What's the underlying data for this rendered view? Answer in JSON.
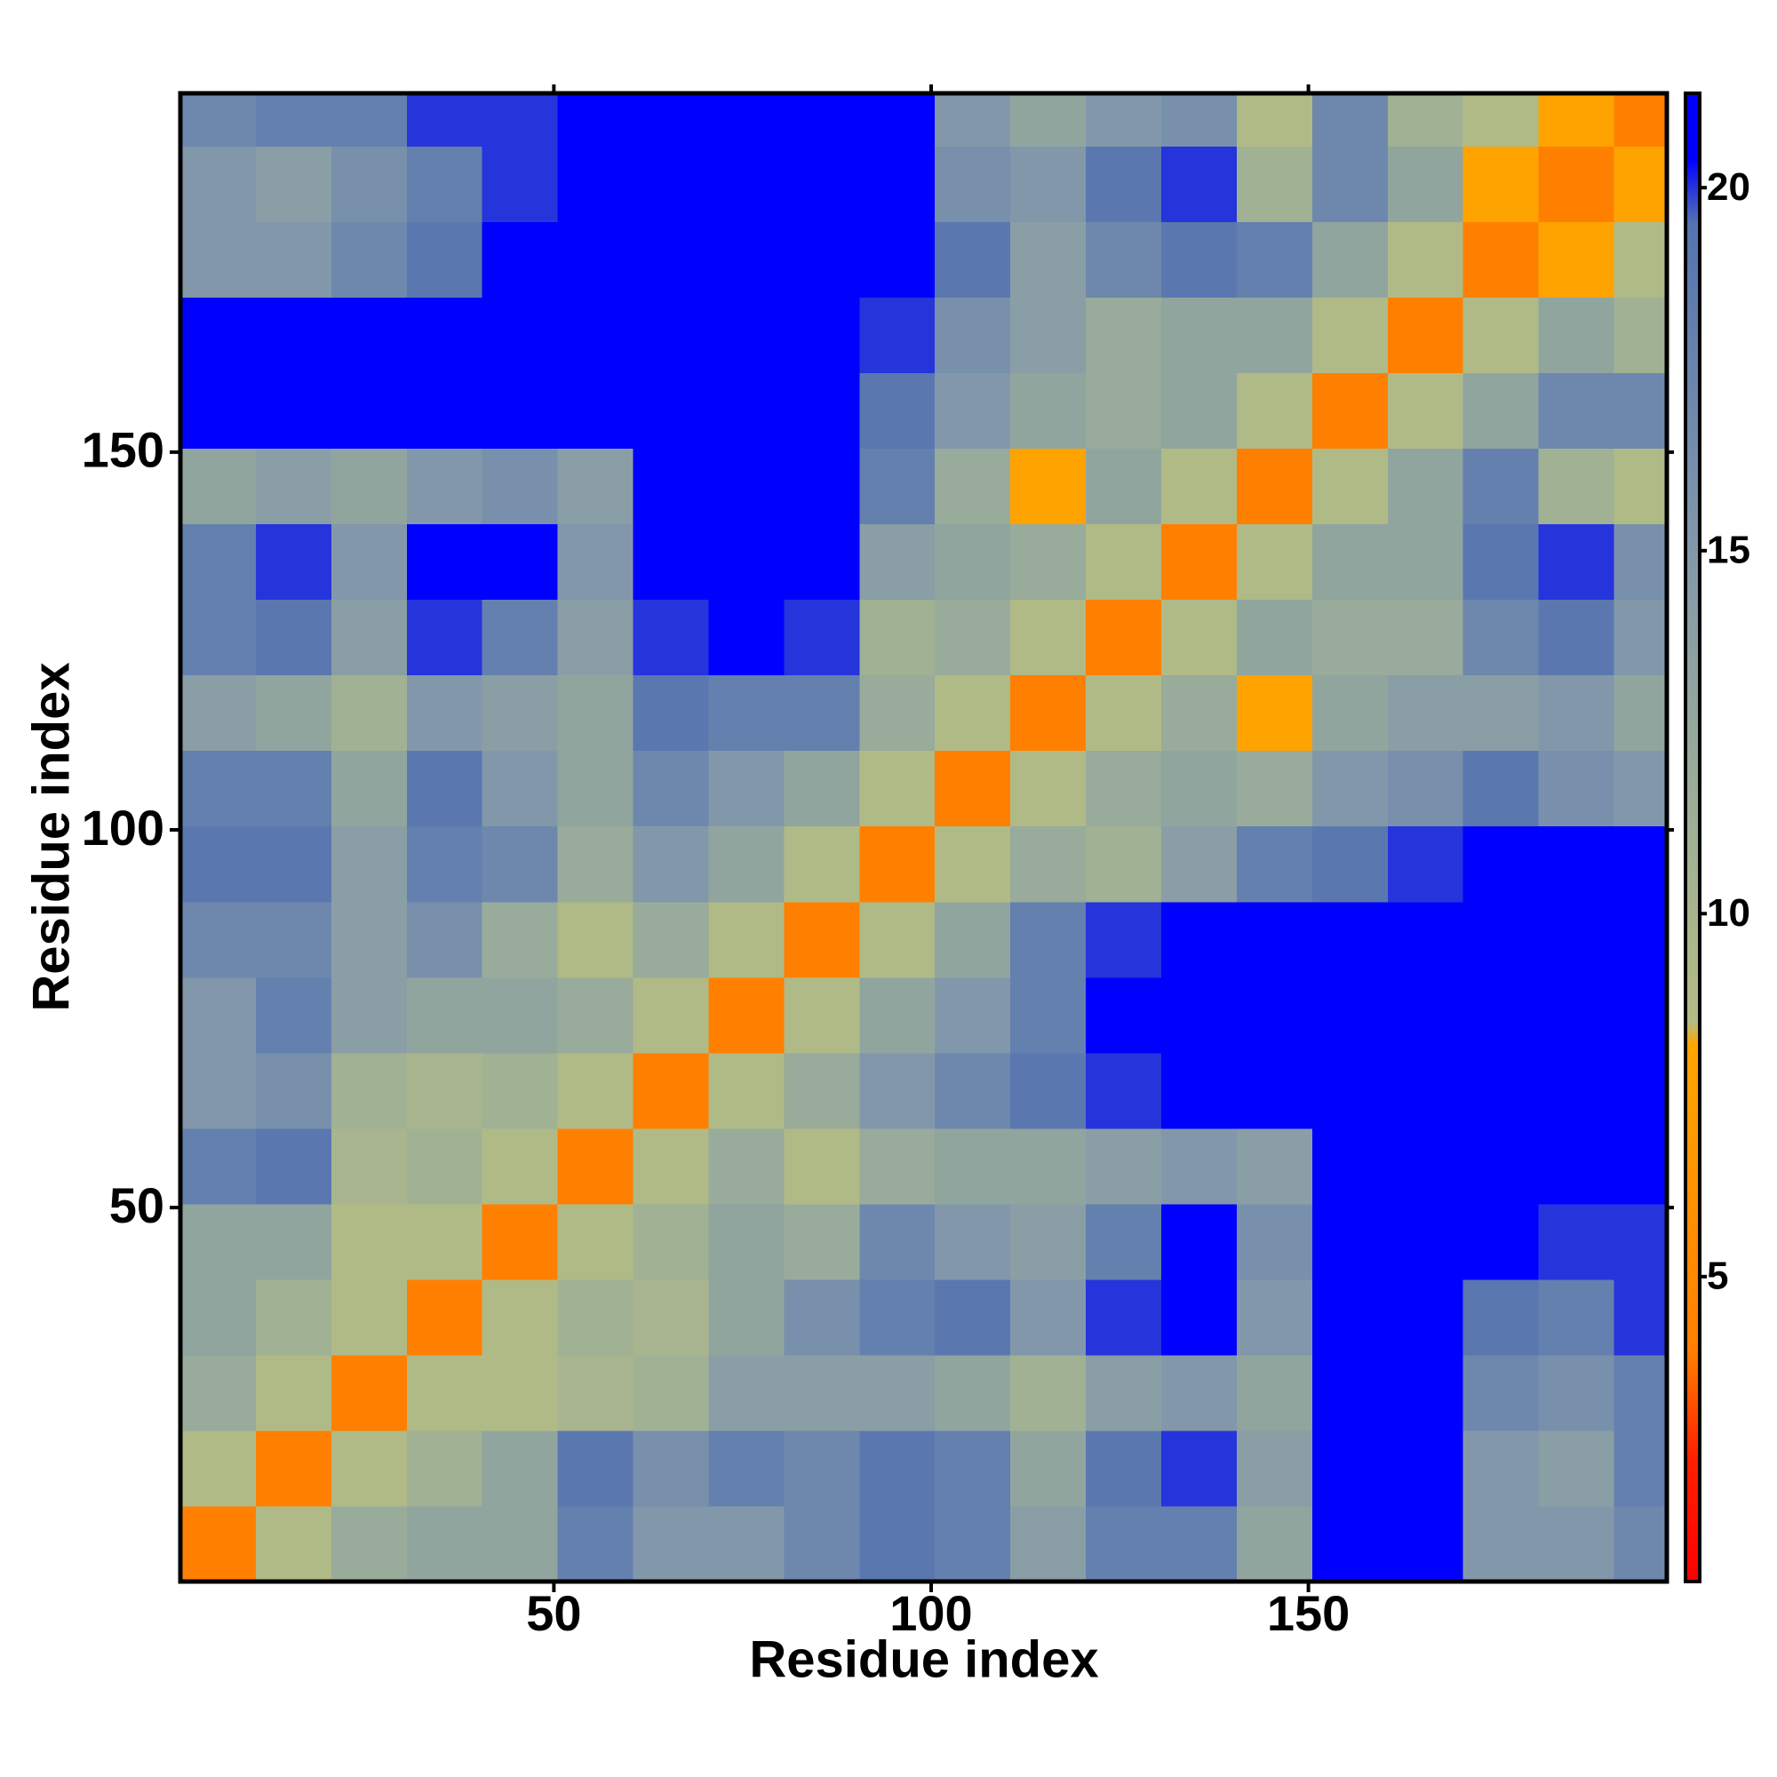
{
  "chart_data": {
    "type": "heatmap",
    "xlabel": "Residue index",
    "ylabel": "Residue index",
    "xedges": [
      0.5,
      10.5,
      20.5,
      30.5,
      40.5,
      50.5,
      60.5,
      70.5,
      80.5,
      90.5,
      100.5,
      110.5,
      120.5,
      130.5,
      140.5,
      150.5,
      160.5,
      170.5,
      180.5,
      190.5,
      197.5
    ],
    "yedges": [
      0.5,
      10.5,
      20.5,
      30.5,
      40.5,
      50.5,
      60.5,
      70.5,
      80.5,
      90.5,
      100.5,
      110.5,
      120.5,
      130.5,
      140.5,
      150.5,
      160.5,
      170.5,
      180.5,
      190.5,
      197.5
    ],
    "z": [
      [
        4,
        9,
        12,
        13,
        13,
        18,
        15,
        15,
        17,
        19,
        18,
        14,
        18,
        18,
        13,
        21,
        21,
        15,
        15,
        17
      ],
      [
        9,
        4,
        9,
        11,
        13,
        19,
        16,
        18,
        17,
        19,
        18,
        13,
        19,
        20,
        14,
        21,
        21,
        15,
        14,
        18
      ],
      [
        12,
        9,
        4,
        9,
        9,
        10,
        11,
        14,
        14,
        14,
        13,
        11,
        14,
        15,
        13,
        21,
        21,
        17,
        16,
        18
      ],
      [
        13,
        11,
        9,
        4,
        9,
        11,
        10,
        13,
        16,
        18,
        19,
        15,
        20,
        21,
        15,
        21,
        21,
        19,
        18,
        20
      ],
      [
        13,
        13,
        9,
        9,
        4,
        9,
        11,
        13,
        12,
        17,
        15,
        14,
        18,
        21,
        16,
        21,
        21,
        21,
        20,
        20
      ],
      [
        18,
        19,
        10,
        11,
        9,
        4,
        9,
        12,
        9,
        12,
        13,
        13,
        14,
        15,
        14,
        21,
        21,
        21,
        21,
        21
      ],
      [
        15,
        16,
        11,
        10,
        11,
        9,
        4,
        9,
        12,
        15,
        17,
        19,
        20,
        21,
        21,
        21,
        21,
        21,
        21,
        21
      ],
      [
        15,
        18,
        14,
        13,
        13,
        12,
        9,
        4,
        9,
        13,
        15,
        18,
        21,
        21,
        21,
        21,
        21,
        21,
        21,
        21
      ],
      [
        17,
        17,
        14,
        16,
        12,
        9,
        12,
        9,
        4,
        9,
        13,
        18,
        20,
        21,
        21,
        21,
        21,
        21,
        21,
        21
      ],
      [
        19,
        19,
        14,
        18,
        17,
        12,
        15,
        13,
        9,
        4,
        9,
        12,
        11,
        14,
        18,
        19,
        20,
        21,
        21,
        21
      ],
      [
        18,
        18,
        13,
        19,
        15,
        13,
        17,
        15,
        13,
        9,
        4,
        9,
        12,
        13,
        12,
        15,
        16,
        19,
        16,
        15
      ],
      [
        14,
        13,
        11,
        15,
        14,
        13,
        19,
        18,
        18,
        12,
        9,
        4,
        9,
        12,
        8,
        13,
        14,
        14,
        15,
        13
      ],
      [
        18,
        19,
        14,
        20,
        18,
        14,
        20,
        21,
        20,
        11,
        12,
        9,
        4,
        9,
        13,
        12,
        12,
        17,
        19,
        15
      ],
      [
        18,
        20,
        15,
        21,
        21,
        15,
        21,
        21,
        21,
        14,
        13,
        12,
        9,
        4,
        9,
        13,
        13,
        19,
        20,
        16
      ],
      [
        13,
        14,
        13,
        15,
        16,
        14,
        21,
        21,
        21,
        18,
        12,
        8,
        13,
        9,
        4,
        9,
        13,
        18,
        11,
        9
      ],
      [
        21,
        21,
        21,
        21,
        21,
        21,
        21,
        21,
        21,
        19,
        15,
        13,
        12,
        13,
        9,
        4,
        9,
        13,
        17,
        17
      ],
      [
        21,
        21,
        21,
        21,
        21,
        21,
        21,
        21,
        21,
        20,
        16,
        14,
        12,
        13,
        13,
        9,
        4,
        9,
        13,
        11
      ],
      [
        15,
        15,
        17,
        19,
        21,
        21,
        21,
        21,
        21,
        21,
        19,
        14,
        17,
        19,
        18,
        13,
        9,
        4,
        8,
        9
      ],
      [
        15,
        14,
        16,
        18,
        20,
        21,
        21,
        21,
        21,
        21,
        16,
        15,
        19,
        20,
        11,
        17,
        13,
        8,
        4,
        8
      ],
      [
        17,
        18,
        18,
        20,
        20,
        21,
        21,
        21,
        21,
        21,
        15,
        13,
        15,
        16,
        9,
        17,
        11,
        9,
        8,
        4
      ]
    ],
    "xlim": [
      0.5,
      197.5
    ],
    "ylim": [
      0.5,
      197.5
    ],
    "xticks": [
      50,
      100,
      150
    ],
    "yticks": [
      50,
      100,
      150
    ],
    "colorbar": {
      "lim": [
        0.8,
        21.3
      ],
      "ticks": [
        5,
        10,
        15,
        20
      ],
      "stops": [
        {
          "value": 0.8,
          "color": "#ff0000"
        },
        {
          "value": 2.5,
          "color": "#ff2000"
        },
        {
          "value": 4,
          "color": "#ff8000"
        },
        {
          "value": 8.2,
          "color": "#ffa500"
        },
        {
          "value": 8.5,
          "color": "#b4bc84"
        },
        {
          "value": 11,
          "color": "#a0b194"
        },
        {
          "value": 15,
          "color": "#8298aa"
        },
        {
          "value": 19.5,
          "color": "#5574b0"
        },
        {
          "value": 20.4,
          "color": "#0000ff"
        },
        {
          "value": 21.3,
          "color": "#0000ff"
        }
      ]
    }
  }
}
